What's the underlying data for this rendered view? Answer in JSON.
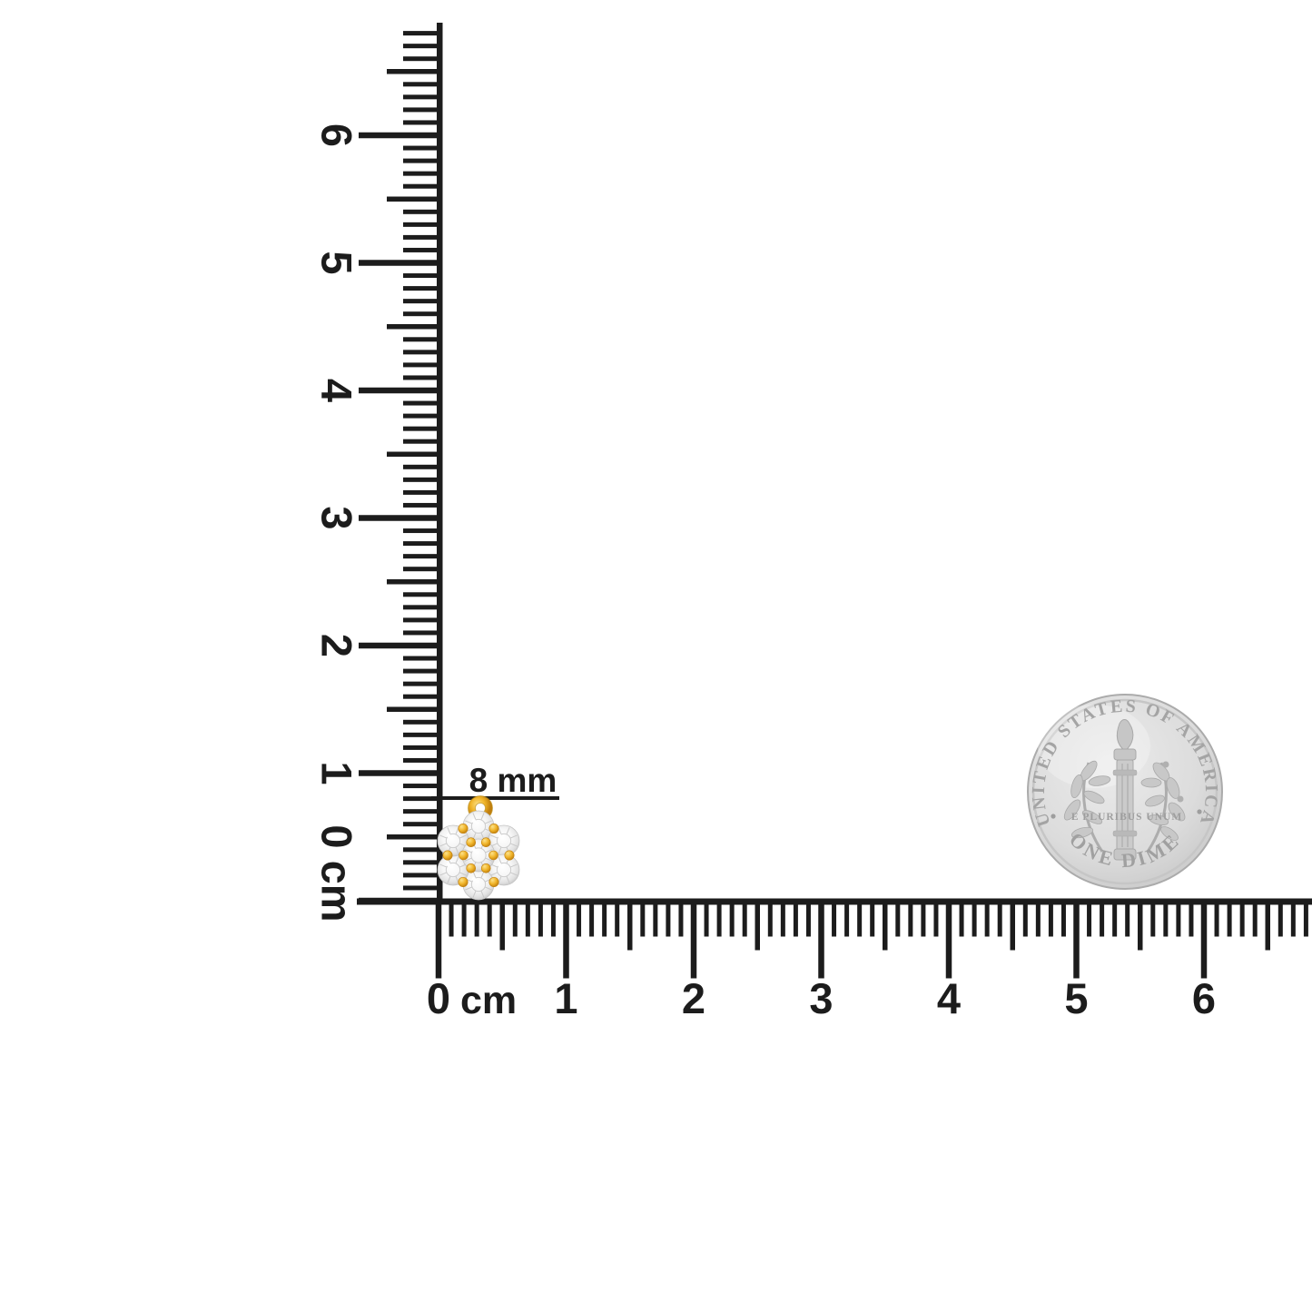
{
  "scene": {
    "background": "#ffffff",
    "ink": "#1c1c1c"
  },
  "vertical_ruler": {
    "labels": [
      "6",
      "5",
      "4",
      "3",
      "2",
      "1"
    ],
    "zero_label": "0 cm",
    "mm_tick_count": 69
  },
  "horizontal_ruler": {
    "zero_label": "0",
    "unit_label": "cm",
    "labels": [
      "1",
      "2",
      "3",
      "4",
      "5",
      "6"
    ],
    "mm_tick_count": 69
  },
  "measurement": {
    "label": "8 mm"
  },
  "pendant": {
    "stone_count": 7,
    "gold_light": "#FCE28A",
    "gold": "#F0B429",
    "gold_dark": "#C07F0E",
    "diamond_center": "#ffffff",
    "diamond_edge": "#c2c2c2"
  },
  "coin": {
    "top_text": "UNITED STATES OF AMERICA",
    "middle_text": "E PLURIBUS UNUM",
    "bottom_text": "ONE DIME",
    "body": "#dcdcdc",
    "detail": "#a6a6a6",
    "rim": "#c6c6c6"
  }
}
